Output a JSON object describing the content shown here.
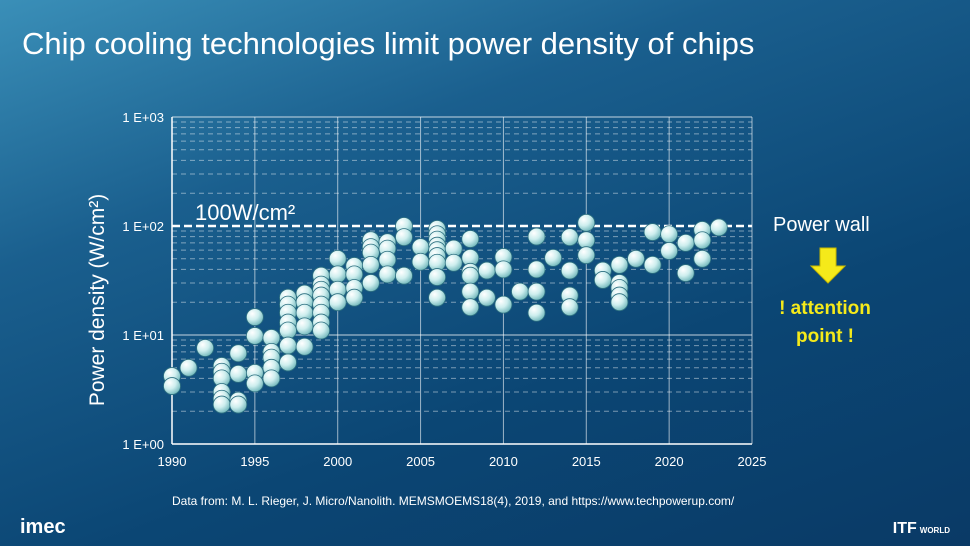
{
  "title": "Chip cooling technologies limit power density of chips",
  "source": "Data from: M. L. Rieger, J. Micro/Nanolith. MEMSMOEMS18(4), 2019, and https://www.techpowerup.com/",
  "logo_left": "imec",
  "logo_right": "ITF",
  "logo_right_sub": "WORLD",
  "annotations": {
    "power_wall": "Power wall",
    "attention_line1": "! attention",
    "attention_line2": "point !",
    "threshold_label": "100W/cm²",
    "arrow_color": "#f5ea1a"
  },
  "chart_data": {
    "type": "scatter",
    "title": "",
    "xlabel": "",
    "ylabel": "Power density (W/cm²)",
    "xlim": [
      1990,
      2025
    ],
    "ylim": [
      1,
      1000
    ],
    "yscale": "log",
    "grid": true,
    "xticks": [
      "1990",
      "1995",
      "2000",
      "2005",
      "2010",
      "2015",
      "2020",
      "2025"
    ],
    "yticks": [
      "1 E+00",
      "1 E+01",
      "1 E+02",
      "1 E+03"
    ],
    "threshold": 100,
    "points": [
      [
        1990,
        4.2
      ],
      [
        1990,
        3.4
      ],
      [
        1991,
        5.0
      ],
      [
        1992,
        7.6
      ],
      [
        1993,
        5.2
      ],
      [
        1993,
        4.6
      ],
      [
        1993,
        4.0
      ],
      [
        1993,
        3.0
      ],
      [
        1993,
        2.6
      ],
      [
        1993,
        2.3
      ],
      [
        1994,
        6.8
      ],
      [
        1994,
        4.4
      ],
      [
        1994,
        2.5
      ],
      [
        1994,
        2.3
      ],
      [
        1995,
        14.6
      ],
      [
        1995,
        9.8
      ],
      [
        1995,
        4.5
      ],
      [
        1995,
        3.6
      ],
      [
        1996,
        9.4
      ],
      [
        1996,
        7.0
      ],
      [
        1996,
        6.2
      ],
      [
        1996,
        5.0
      ],
      [
        1996,
        4.0
      ],
      [
        1997,
        22
      ],
      [
        1997,
        19
      ],
      [
        1997,
        16
      ],
      [
        1997,
        13
      ],
      [
        1997,
        11
      ],
      [
        1997,
        8
      ],
      [
        1997,
        5.6
      ],
      [
        1998,
        24
      ],
      [
        1998,
        20
      ],
      [
        1998,
        16
      ],
      [
        1998,
        12
      ],
      [
        1998,
        7.8
      ],
      [
        1999,
        35
      ],
      [
        1999,
        29
      ],
      [
        1999,
        26
      ],
      [
        1999,
        23
      ],
      [
        1999,
        19
      ],
      [
        1999,
        16
      ],
      [
        1999,
        13
      ],
      [
        1999,
        11
      ],
      [
        2000,
        50
      ],
      [
        2000,
        36
      ],
      [
        2000,
        26
      ],
      [
        2000,
        20
      ],
      [
        2001,
        43
      ],
      [
        2001,
        36
      ],
      [
        2001,
        27
      ],
      [
        2001,
        22
      ],
      [
        2002,
        74
      ],
      [
        2002,
        64
      ],
      [
        2002,
        57
      ],
      [
        2002,
        44
      ],
      [
        2002,
        30
      ],
      [
        2003,
        71
      ],
      [
        2003,
        62
      ],
      [
        2003,
        49
      ],
      [
        2003,
        36
      ],
      [
        2004,
        100
      ],
      [
        2004,
        79
      ],
      [
        2004,
        35
      ],
      [
        2005,
        64
      ],
      [
        2005,
        47
      ],
      [
        2006,
        94
      ],
      [
        2006,
        84
      ],
      [
        2006,
        75
      ],
      [
        2006,
        66
      ],
      [
        2006,
        60
      ],
      [
        2006,
        53
      ],
      [
        2006,
        46
      ],
      [
        2006,
        34
      ],
      [
        2006,
        22
      ],
      [
        2007,
        62
      ],
      [
        2007,
        46
      ],
      [
        2008,
        76
      ],
      [
        2008,
        51
      ],
      [
        2008,
        38
      ],
      [
        2008,
        35
      ],
      [
        2008,
        25
      ],
      [
        2008,
        18
      ],
      [
        2009,
        39
      ],
      [
        2009,
        22
      ],
      [
        2010,
        52
      ],
      [
        2010,
        40
      ],
      [
        2010,
        19
      ],
      [
        2011,
        25
      ],
      [
        2012,
        80
      ],
      [
        2012,
        40
      ],
      [
        2012,
        25
      ],
      [
        2012,
        16
      ],
      [
        2013,
        51
      ],
      [
        2014,
        79
      ],
      [
        2014,
        39
      ],
      [
        2014,
        23
      ],
      [
        2014,
        18
      ],
      [
        2015,
        107
      ],
      [
        2015,
        74
      ],
      [
        2015,
        54
      ],
      [
        2016,
        39
      ],
      [
        2016,
        32
      ],
      [
        2017,
        44
      ],
      [
        2017,
        30
      ],
      [
        2017,
        27
      ],
      [
        2017,
        23
      ],
      [
        2017,
        20
      ],
      [
        2018,
        50
      ],
      [
        2019,
        88
      ],
      [
        2019,
        44
      ],
      [
        2020,
        84
      ],
      [
        2020,
        59
      ],
      [
        2021,
        70
      ],
      [
        2021,
        37
      ],
      [
        2022,
        92
      ],
      [
        2022,
        74
      ],
      [
        2022,
        50
      ],
      [
        2023,
        97
      ]
    ]
  }
}
